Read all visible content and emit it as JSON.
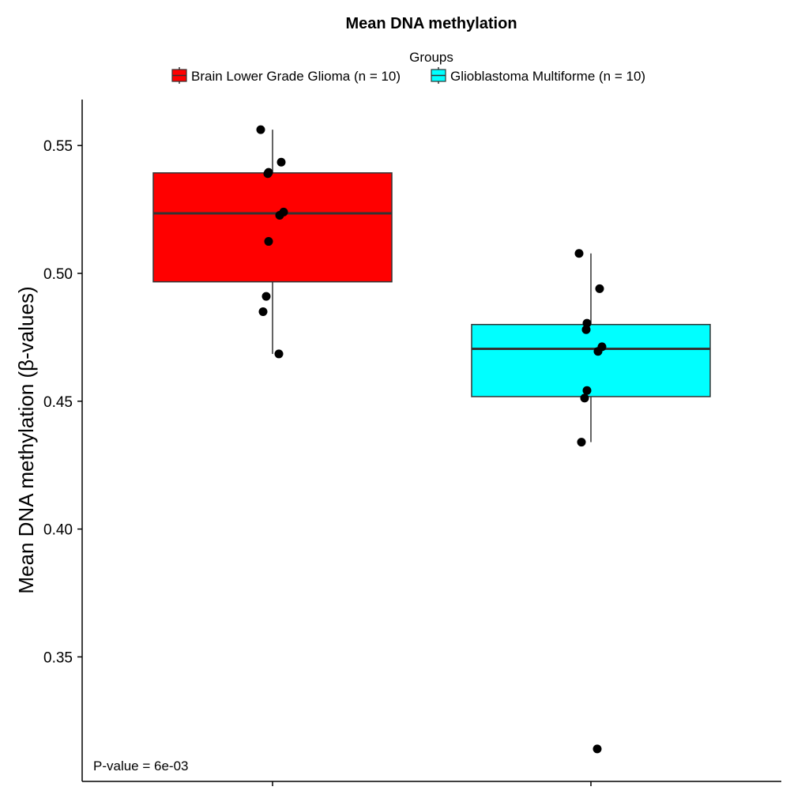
{
  "chart_data": {
    "type": "box",
    "title": "Mean DNA methylation",
    "ylabel": "Mean DNA methylation (β-values)",
    "xlabel": "",
    "ylim": [
      0.306,
      0.568
    ],
    "yticks": [
      "0.35",
      "0.40",
      "0.45",
      "0.50",
      "0.55"
    ],
    "ytick_values": [
      0.35,
      0.4,
      0.45,
      0.5,
      0.55
    ],
    "grid": false,
    "legend": {
      "title": "Groups",
      "placement": "top",
      "entries": [
        "Brain Lower Grade Glioma (n = 10)",
        "Glioblastoma Multiforme (n = 10)"
      ]
    },
    "annotation": "P-value = 6e-03",
    "series": [
      {
        "name": "Brain Lower Grade Glioma (n = 10)",
        "color": "#ff0000",
        "whisker_low": 0.4685,
        "q1": 0.4967,
        "median": 0.5235,
        "q3": 0.5393,
        "whisker_high": 0.5562,
        "points": [
          0.5562,
          0.5435,
          0.5395,
          0.539,
          0.524,
          0.5227,
          0.5125,
          0.491,
          0.485,
          0.4685
        ]
      },
      {
        "name": "Glioblastoma Multiforme (n = 10)",
        "color": "#00ffff",
        "whisker_low": 0.434,
        "q1": 0.4518,
        "median": 0.4705,
        "q3": 0.48,
        "whisker_high": 0.5078,
        "points": [
          0.5078,
          0.494,
          0.4805,
          0.478,
          0.4713,
          0.4695,
          0.4542,
          0.4512,
          0.434,
          0.314
        ]
      }
    ]
  }
}
